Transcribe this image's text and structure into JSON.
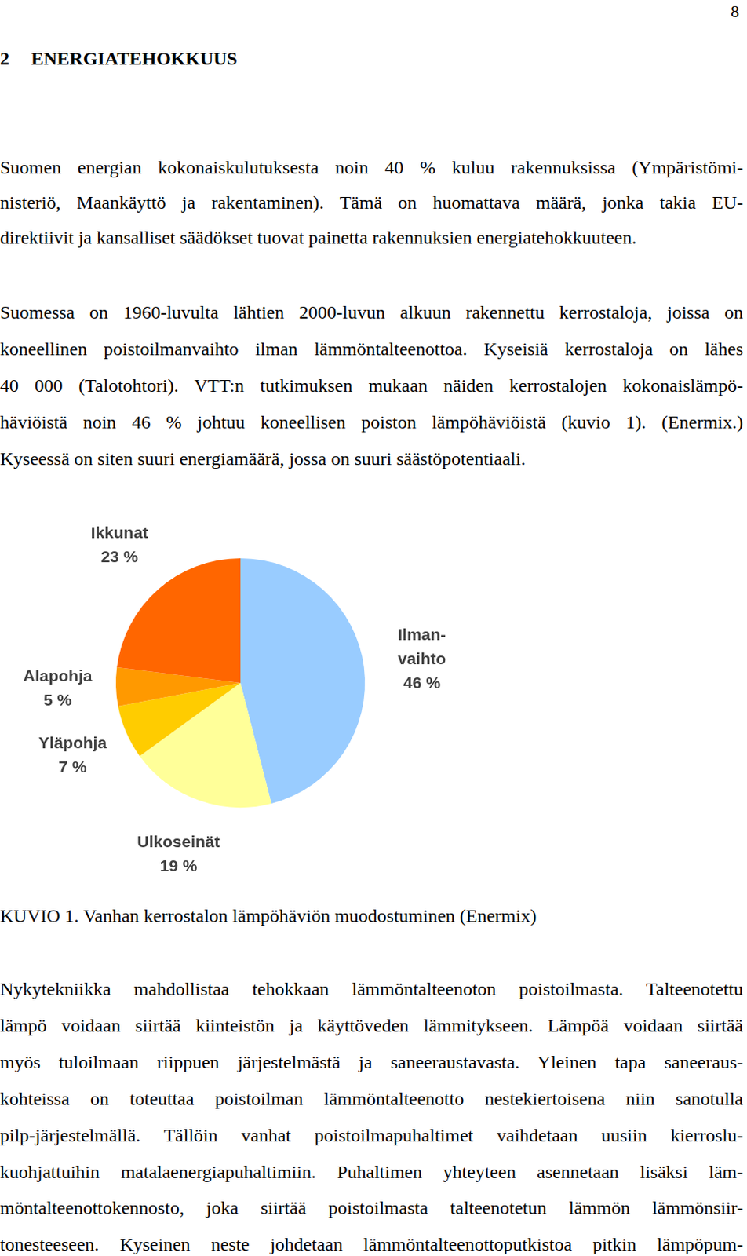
{
  "page_number": "8",
  "heading": {
    "number": "2",
    "title": "ENERGIATEHOKKUUS"
  },
  "paragraphs_top": [
    [
      "Suomen energian kokonaiskulutuksesta noin 40 % kuluu rakennuksissa (Ympäristömi-",
      "nisteriö, Maankäyttö ja rakentaminen). Tämä on huomattava määrä, jonka takia EU-",
      "direktiivit ja kansalliset säädökset tuovat painetta rakennuksien energiatehokkuuteen."
    ],
    [
      "Suomessa on 1960-luvulta lähtien 2000-luvun alkuun rakennettu kerrostaloja, joissa on",
      "koneellinen poistoilmanvaihto ilman lämmöntalteenottoa. Kyseisiä kerrostaloja on lähes",
      "40 000 (Talotohtori). VTT:n tutkimuksen mukaan näiden kerrostalojen kokonaislämpö-",
      "häviöistä noin 46 % johtuu koneellisen poiston lämpöhäviöistä (kuvio 1). (Enermix.)",
      "Kyseessä on siten suuri energiamäärä, jossa on suuri säästöpotentiaali."
    ]
  ],
  "chart_data": {
    "type": "pie",
    "categories": [
      "Ilman-\nvaihto",
      "Ulkoseinät",
      "Yläpohja",
      "Alapohja",
      "Ikkunat"
    ],
    "values": [
      46,
      19,
      7,
      5,
      23
    ],
    "value_labels": [
      "46 %",
      "19 %",
      "7 %",
      "5 %",
      "23 %"
    ],
    "colors": [
      "#99ccff",
      "#ffff99",
      "#ffcc00",
      "#ff9900",
      "#ff6600"
    ],
    "data_labels": true
  },
  "caption": "KUVIO 1. Vanhan kerrostalon lämpöhäviön muodostuminen (Enermix)",
  "paragraphs_bottom": [
    [
      "Nykytekniikka mahdollistaa tehokkaan lämmöntalteenoton poistoilmasta. Talteenotettu",
      "lämpö voidaan siirtää kiinteistön ja käyttöveden lämmitykseen. Lämpöä voidaan siirtää",
      "myös tuloilmaan riippuen järjestelmästä ja saneeraustavasta. Yleinen tapa saneeraus-",
      "kohteissa on toteuttaa poistoilman lämmöntalteenotto nestekiertoisena niin sanotulla",
      "pilp-järjestelmällä. Tällöin vanhat poistoilmapuhaltimet vaihdetaan uusiin kierroslu-",
      "kuohjattuihin matalaenergiapuhaltimiin. Puhaltimen yhteyteen asennetaan lisäksi läm-",
      "möntalteenottokennosto, joka siirtää poistoilmasta talteenotetun lämmön lämmönsiir-",
      "tonesteeseen. Kyseinen neste johdetaan lämmöntalteenottoputkistoa pitkin lämpöpum-"
    ]
  ]
}
